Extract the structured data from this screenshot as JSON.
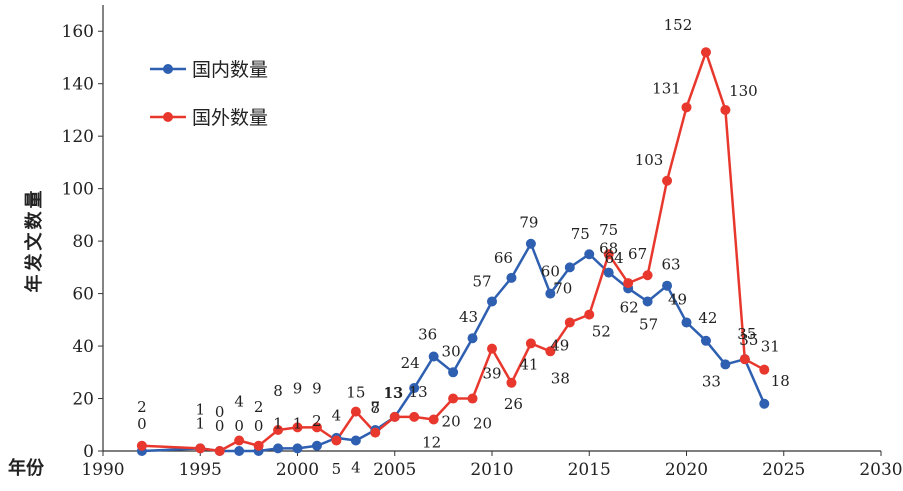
{
  "chart_data": {
    "type": "line",
    "xlabel": "年份",
    "ylabel": "年发文数量",
    "xlim": [
      1990,
      2030
    ],
    "ylim": [
      0,
      170
    ],
    "xticks": [
      1990,
      1995,
      2000,
      2005,
      2010,
      2015,
      2020,
      2025,
      2030
    ],
    "yticks": [
      0,
      20,
      40,
      60,
      80,
      100,
      120,
      140,
      160
    ],
    "grid": false,
    "legend_position": "top-left",
    "series": [
      {
        "name": "国内数量",
        "color": "#2e5fb0",
        "x": [
          1992,
          1995,
          1996,
          1997,
          1998,
          1999,
          2000,
          2001,
          2002,
          2003,
          2004,
          2005,
          2006,
          2007,
          2008,
          2009,
          2010,
          2011,
          2012,
          2013,
          2014,
          2015,
          2016,
          2017,
          2018,
          2019,
          2020,
          2021,
          2022,
          2023,
          2024
        ],
        "values": [
          0,
          1,
          0,
          0,
          0,
          1,
          1,
          2,
          5,
          4,
          8,
          13,
          24,
          36,
          30,
          43,
          57,
          66,
          79,
          60,
          70,
          75,
          68,
          62,
          57,
          63,
          49,
          42,
          33,
          35,
          18
        ]
      },
      {
        "name": "国外数量",
        "color": "#e8382e",
        "x": [
          1992,
          1995,
          1996,
          1997,
          1998,
          1999,
          2000,
          2001,
          2002,
          2003,
          2004,
          2005,
          2006,
          2007,
          2008,
          2009,
          2010,
          2011,
          2012,
          2013,
          2014,
          2015,
          2016,
          2017,
          2018,
          2019,
          2020,
          2021,
          2022,
          2023,
          2024
        ],
        "values": [
          2,
          1,
          0,
          4,
          2,
          8,
          9,
          9,
          4,
          15,
          7,
          13,
          13,
          12,
          20,
          20,
          39,
          26,
          41,
          38,
          49,
          52,
          75,
          64,
          67,
          103,
          131,
          152,
          130,
          35,
          31
        ]
      }
    ]
  }
}
